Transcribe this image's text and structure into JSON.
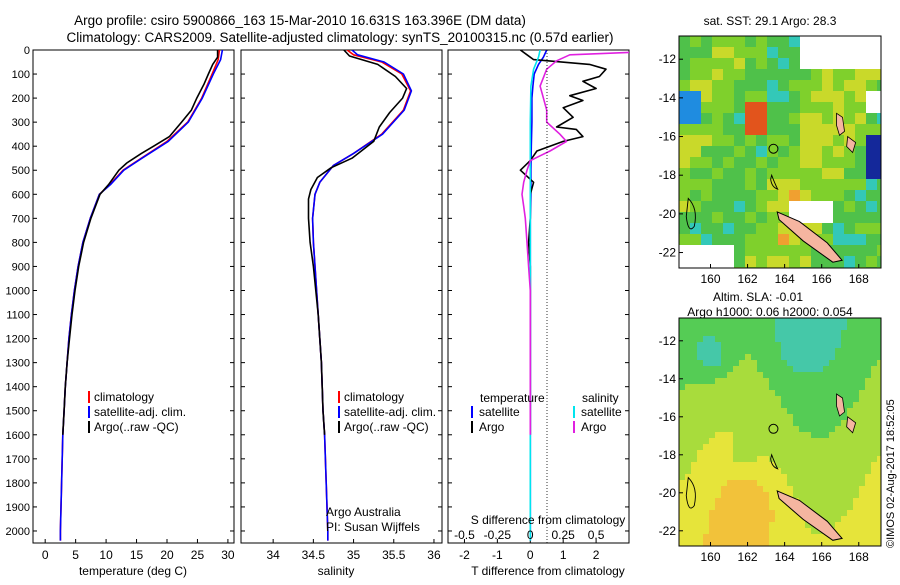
{
  "header": {
    "line1": "Argo profile: csiro 5900866_163 15-Mar-2010 16.631S 163.396E (DM data)",
    "line2": "Climatology: CARS2009. Satellite-adjusted climatology: synTS_20100315.nc (0.57d earlier)"
  },
  "colors": {
    "climatology": "#ff0000",
    "satellite": "#0000ff",
    "argo": "#000000",
    "s_satellite": "#00e5ee",
    "s_argo": "#e020e0"
  },
  "chart_data": [
    {
      "type": "line",
      "name": "temperature",
      "xlabel": "temperature (deg C)",
      "ylabel": "",
      "xlim": [
        -2,
        31
      ],
      "ylim": [
        2050,
        0
      ],
      "xticks": [
        0,
        5,
        10,
        15,
        20,
        25,
        30
      ],
      "yticks": [
        0,
        100,
        200,
        300,
        400,
        500,
        600,
        700,
        800,
        900,
        1000,
        1100,
        1200,
        1300,
        1400,
        1500,
        1600,
        1700,
        1800,
        1900,
        2000
      ],
      "legend": [
        "climatology",
        "satellite-adj. clim.",
        "Argo(..raw -QC)"
      ],
      "series": [
        {
          "name": "climatology",
          "color": "#ff0000",
          "points": [
            [
              28.6,
              0
            ],
            [
              28.4,
              40
            ],
            [
              27.4,
              100
            ],
            [
              25.7,
              200
            ],
            [
              23.4,
              300
            ],
            [
              20.0,
              380
            ],
            [
              15.8,
              450
            ],
            [
              12.8,
              500
            ],
            [
              10.6,
              560
            ],
            [
              8.9,
              600
            ],
            [
              7.4,
              700
            ],
            [
              6.2,
              800
            ],
            [
              5.4,
              900
            ],
            [
              4.8,
              1000
            ],
            [
              4.3,
              1100
            ],
            [
              3.9,
              1200
            ],
            [
              3.6,
              1300
            ],
            [
              3.3,
              1400
            ],
            [
              3.1,
              1500
            ],
            [
              2.9,
              1600
            ],
            [
              2.8,
              1700
            ],
            [
              2.7,
              1800
            ],
            [
              2.6,
              1900
            ],
            [
              2.5,
              2000
            ],
            [
              2.5,
              2040
            ]
          ]
        },
        {
          "name": "satellite-adj. clim.",
          "color": "#0000ff",
          "points": [
            [
              29.1,
              0
            ],
            [
              28.8,
              40
            ],
            [
              27.6,
              100
            ],
            [
              25.8,
              200
            ],
            [
              23.5,
              300
            ],
            [
              20.2,
              380
            ],
            [
              15.9,
              450
            ],
            [
              12.9,
              500
            ],
            [
              10.7,
              560
            ],
            [
              8.9,
              600
            ],
            [
              7.4,
              700
            ],
            [
              6.2,
              800
            ],
            [
              5.4,
              900
            ],
            [
              4.8,
              1000
            ],
            [
              4.3,
              1100
            ],
            [
              3.9,
              1200
            ],
            [
              3.6,
              1300
            ],
            [
              3.3,
              1400
            ],
            [
              3.1,
              1500
            ],
            [
              2.9,
              1600
            ],
            [
              2.8,
              1700
            ],
            [
              2.7,
              1800
            ],
            [
              2.6,
              1900
            ],
            [
              2.5,
              2000
            ],
            [
              2.5,
              2040
            ]
          ]
        },
        {
          "name": "Argo(..raw -QC)",
          "color": "#000000",
          "points": [
            [
              28.3,
              0
            ],
            [
              28.3,
              30
            ],
            [
              27.5,
              60
            ],
            [
              26.8,
              100
            ],
            [
              26.1,
              140
            ],
            [
              24.9,
              200
            ],
            [
              24.0,
              250
            ],
            [
              22.4,
              300
            ],
            [
              20.4,
              360
            ],
            [
              17.8,
              400
            ],
            [
              15.8,
              430
            ],
            [
              13.4,
              470
            ],
            [
              12.1,
              500
            ],
            [
              10.4,
              560
            ],
            [
              9.0,
              600
            ],
            [
              7.5,
              700
            ],
            [
              6.3,
              800
            ],
            [
              5.5,
              900
            ],
            [
              4.9,
              1000
            ],
            [
              4.4,
              1100
            ],
            [
              4.0,
              1200
            ],
            [
              3.6,
              1300
            ],
            [
              3.3,
              1400
            ],
            [
              3.1,
              1500
            ],
            [
              2.9,
              1600
            ]
          ]
        }
      ]
    },
    {
      "type": "line",
      "name": "salinity",
      "xlabel": "salinity",
      "xlim": [
        33.6,
        36.1
      ],
      "ylim": [
        2050,
        0
      ],
      "xticks": [
        34,
        34.5,
        35,
        35.5,
        36
      ],
      "legend": [
        "climatology",
        "satellite-adj. clim.",
        "Argo(..raw -QC)"
      ],
      "annotation": [
        "Argo Australia",
        "PI: Susan Wijffels"
      ],
      "series": [
        {
          "name": "climatology",
          "color": "#ff0000",
          "points": [
            [
              34.92,
              0
            ],
            [
              35.0,
              20
            ],
            [
              35.35,
              50
            ],
            [
              35.6,
              100
            ],
            [
              35.71,
              170
            ],
            [
              35.62,
              250
            ],
            [
              35.35,
              350
            ],
            [
              35.0,
              430
            ],
            [
              34.75,
              480
            ],
            [
              34.58,
              550
            ],
            [
              34.52,
              600
            ],
            [
              34.49,
              700
            ],
            [
              34.5,
              800
            ],
            [
              34.52,
              900
            ],
            [
              34.54,
              1000
            ],
            [
              34.56,
              1100
            ],
            [
              34.58,
              1200
            ],
            [
              34.6,
              1300
            ],
            [
              34.61,
              1400
            ],
            [
              34.62,
              1500
            ],
            [
              34.64,
              1600
            ],
            [
              34.65,
              1700
            ],
            [
              34.66,
              1800
            ],
            [
              34.67,
              1900
            ],
            [
              34.68,
              2000
            ],
            [
              34.68,
              2040
            ]
          ]
        },
        {
          "name": "satellite-adj. clim.",
          "color": "#0000ff",
          "points": [
            [
              34.98,
              0
            ],
            [
              35.05,
              20
            ],
            [
              35.38,
              50
            ],
            [
              35.62,
              100
            ],
            [
              35.72,
              170
            ],
            [
              35.63,
              250
            ],
            [
              35.36,
              350
            ],
            [
              35.0,
              430
            ],
            [
              34.75,
              480
            ],
            [
              34.58,
              550
            ],
            [
              34.52,
              600
            ],
            [
              34.49,
              700
            ],
            [
              34.5,
              800
            ],
            [
              34.52,
              900
            ],
            [
              34.54,
              1000
            ],
            [
              34.56,
              1100
            ],
            [
              34.58,
              1200
            ],
            [
              34.6,
              1300
            ],
            [
              34.61,
              1400
            ],
            [
              34.62,
              1500
            ],
            [
              34.64,
              1600
            ],
            [
              34.65,
              1700
            ],
            [
              34.66,
              1800
            ],
            [
              34.67,
              1900
            ],
            [
              34.68,
              2000
            ],
            [
              34.68,
              2040
            ]
          ]
        },
        {
          "name": "Argo(..raw -QC)",
          "color": "#000000",
          "points": [
            [
              34.88,
              0
            ],
            [
              34.95,
              25
            ],
            [
              35.3,
              60
            ],
            [
              35.52,
              110
            ],
            [
              35.66,
              160
            ],
            [
              35.61,
              200
            ],
            [
              35.45,
              260
            ],
            [
              35.32,
              320
            ],
            [
              35.25,
              380
            ],
            [
              34.98,
              450
            ],
            [
              34.72,
              490
            ],
            [
              34.55,
              530
            ],
            [
              34.47,
              580
            ],
            [
              34.44,
              620
            ],
            [
              34.44,
              700
            ],
            [
              34.46,
              800
            ],
            [
              34.5,
              900
            ],
            [
              34.53,
              1000
            ],
            [
              34.56,
              1100
            ],
            [
              34.58,
              1200
            ],
            [
              34.6,
              1300
            ],
            [
              34.61,
              1400
            ],
            [
              34.62,
              1500
            ],
            [
              34.64,
              1600
            ]
          ]
        }
      ]
    },
    {
      "type": "line",
      "name": "differences",
      "xlabel": "T difference from climatology",
      "xlabel_top": "S difference from climatology",
      "xlim": [
        -2.5,
        3.0
      ],
      "ylim": [
        2050,
        0
      ],
      "xticks": [
        -2,
        -1,
        0,
        1,
        2
      ],
      "xticks_s_labels": [
        "-0.5",
        "-0.25",
        "0",
        "0.25",
        "0.5"
      ],
      "xticks_s_positions": [
        -2,
        -1,
        0,
        1,
        2
      ],
      "legend_temperature": {
        "title": "temperature",
        "items": [
          "satellite",
          "Argo"
        ]
      },
      "legend_salinity": {
        "title": "salinity",
        "items": [
          "satellite",
          "Argo"
        ]
      },
      "series": [
        {
          "name": "T satellite",
          "color": "#0000ff",
          "points": [
            [
              0.5,
              0
            ],
            [
              0.4,
              30
            ],
            [
              0.25,
              60
            ],
            [
              0.12,
              100
            ],
            [
              0.08,
              150
            ],
            [
              0.05,
              200
            ],
            [
              0.05,
              300
            ],
            [
              0.03,
              400
            ],
            [
              0.02,
              500
            ],
            [
              0.02,
              600
            ],
            [
              0,
              700
            ],
            [
              0,
              1000
            ],
            [
              0,
              1500
            ],
            [
              0,
              2040
            ]
          ]
        },
        {
          "name": "T Argo",
          "color": "#000000",
          "points": [
            [
              -0.3,
              0
            ],
            [
              -0.1,
              20
            ],
            [
              0.1,
              40
            ],
            [
              1.8,
              60
            ],
            [
              2.3,
              80
            ],
            [
              2.1,
              110
            ],
            [
              1.6,
              130
            ],
            [
              2.0,
              160
            ],
            [
              1.2,
              190
            ],
            [
              1.6,
              210
            ],
            [
              1.0,
              240
            ],
            [
              1.3,
              280
            ],
            [
              0.8,
              320
            ],
            [
              1.4,
              330
            ],
            [
              1.6,
              360
            ],
            [
              1.0,
              380
            ],
            [
              0.2,
              420
            ],
            [
              0.0,
              460
            ],
            [
              -0.3,
              500
            ],
            [
              0.1,
              550
            ],
            [
              0.0,
              600
            ],
            [
              0.0,
              700
            ],
            [
              -0.05,
              800
            ],
            [
              0,
              900
            ],
            [
              0,
              1000
            ],
            [
              0,
              1200
            ],
            [
              0,
              1600
            ]
          ]
        },
        {
          "name": "S satellite",
          "color": "#00e5ee",
          "points": [
            [
              0.3,
              0
            ],
            [
              0.25,
              30
            ],
            [
              0.1,
              80
            ],
            [
              0.02,
              150
            ],
            [
              0.0,
              300
            ],
            [
              0.0,
              500
            ],
            [
              0.0,
              800
            ],
            [
              0,
              1200
            ],
            [
              0,
              1600
            ],
            [
              0,
              2000
            ],
            [
              0,
              2040
            ]
          ]
        },
        {
          "name": "S Argo",
          "color": "#e020e0",
          "points": [
            [
              3.0,
              10
            ],
            [
              1.2,
              20
            ],
            [
              0.8,
              45
            ],
            [
              0.5,
              80
            ],
            [
              0.3,
              150
            ],
            [
              0.4,
              200
            ],
            [
              0.5,
              250
            ],
            [
              0.5,
              300
            ],
            [
              0.9,
              350
            ],
            [
              1.1,
              380
            ],
            [
              0.6,
              420
            ],
            [
              0.3,
              440
            ],
            [
              0.0,
              460
            ],
            [
              -0.1,
              500
            ],
            [
              -0.2,
              550
            ],
            [
              -0.25,
              600
            ],
            [
              -0.2,
              650
            ],
            [
              -0.15,
              700
            ],
            [
              -0.1,
              800
            ],
            [
              -0.05,
              900
            ],
            [
              0,
              1000
            ],
            [
              0,
              1200
            ],
            [
              0,
              1600
            ]
          ]
        }
      ]
    },
    {
      "type": "heatmap",
      "name": "sst_map",
      "title": "sat. SST: 29.1  Argo: 28.3",
      "xticks": [
        160,
        162,
        164,
        166,
        168
      ],
      "yticks": [
        -12,
        -14,
        -16,
        -18,
        -20,
        -22
      ],
      "xlim": [
        158.3,
        169.2
      ],
      "ylim": [
        -22.8,
        -10.8
      ],
      "profile_location": [
        163.396,
        -16.631
      ]
    },
    {
      "type": "heatmap",
      "name": "sla_map",
      "title": "Altim. SLA: -0.01",
      "subtitle": "Argo h1000: 0.06 h2000: 0.054",
      "xticks": [
        160,
        162,
        164,
        166,
        168
      ],
      "yticks": [
        -12,
        -14,
        -16,
        -18,
        -20,
        -22
      ],
      "xlim": [
        158.3,
        169.2
      ],
      "ylim": [
        -22.8,
        -10.8
      ],
      "profile_location": [
        163.396,
        -16.631
      ]
    }
  ],
  "credit": "©IMOS 02-Aug-2017 18:52:05"
}
